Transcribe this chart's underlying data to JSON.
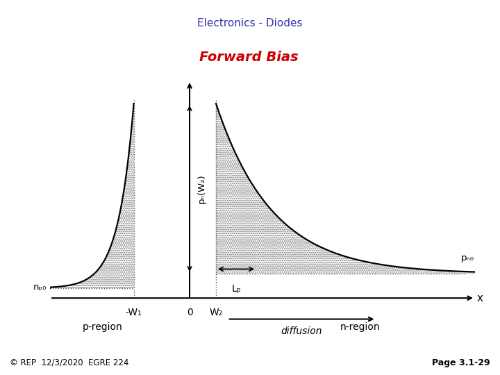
{
  "title_box": "Electronics - Diodes",
  "subtitle": "Forward Bias",
  "title_box_bg": "#c8c8f8",
  "title_box_border": "#8888cc",
  "subtitle_bg": "#ffb0c8",
  "subtitle_color": "#cc0000",
  "header_bar_color": "#000000",
  "red_bar_color": "#cc0000",
  "light_gray_bar": "#cccccc",
  "cyan_bar": "#aadddd",
  "bg_color": "#ffffff",
  "footer_left": "© REP  12/3/2020  EGRE 224",
  "footer_right": "Page 3.1-29",
  "x_label": "x",
  "p_region_label": "p-region",
  "n_region_label": "n-region",
  "w1_label": "-W₁",
  "w2_label": "W₂",
  "origin_label": "0",
  "np0_label": "nₚ₀",
  "pn0_label": "pₙ₀",
  "pnW2_label": "pₙ(W₂)",
  "Lp_label": "Lₚ",
  "diffusion_label": "diffusion",
  "hatch_color": "#888888",
  "curve_color": "#000000",
  "dot_line_color": "#555555"
}
